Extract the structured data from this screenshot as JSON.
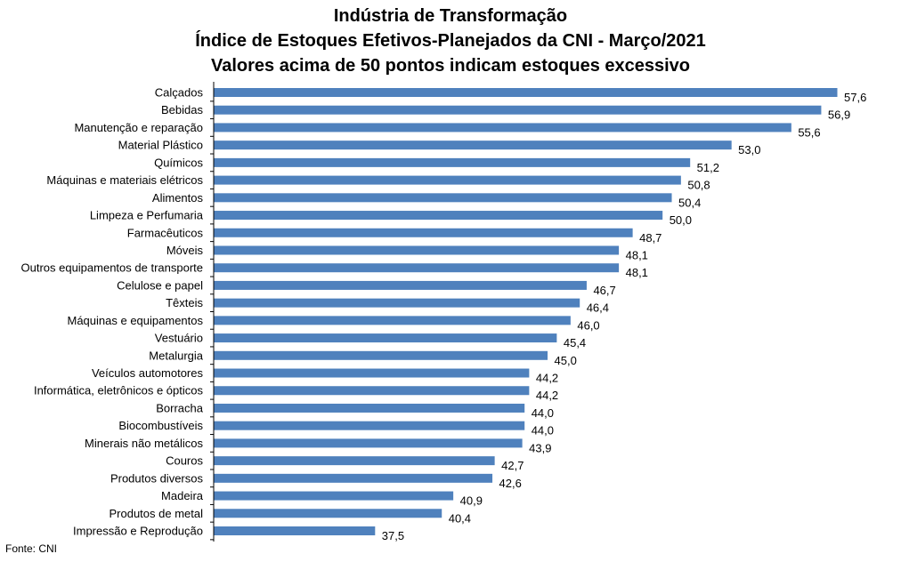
{
  "chart_data": {
    "type": "bar",
    "orientation": "horizontal",
    "title_lines": [
      "Indústria de Transformação",
      "Índice de Estoques Efetivos-Planejados da CNI - Março/2021",
      "Valores acima de 50 pontos indicam estoques excessivo"
    ],
    "categories": [
      "Calçados",
      "Bebidas",
      "Manutenção e reparação",
      "Material Plástico",
      "Químicos",
      "Máquinas e materiais elétricos",
      "Alimentos",
      "Limpeza e Perfumaria",
      "Farmacêuticos",
      "Móveis",
      "Outros equipamentos de transporte",
      "Celulose e papel",
      "Têxteis",
      "Máquinas e equipamentos",
      "Vestuário",
      "Metalurgia",
      "Veículos automotores",
      "Informática, eletrônicos e ópticos",
      "Borracha",
      "Biocombustíveis",
      "Minerais não metálicos",
      "Couros",
      "Produtos diversos",
      "Madeira",
      "Produtos de metal",
      "Impressão e Reprodução"
    ],
    "values": [
      57.6,
      56.9,
      55.6,
      53.0,
      51.2,
      50.8,
      50.4,
      50.0,
      48.7,
      48.1,
      48.1,
      46.7,
      46.4,
      46.0,
      45.4,
      45.0,
      44.2,
      44.2,
      44.0,
      44.0,
      43.9,
      42.7,
      42.6,
      40.9,
      40.4,
      37.5
    ],
    "value_labels": [
      "57,6",
      "56,9",
      "55,6",
      "53,0",
      "51,2",
      "50,8",
      "50,4",
      "50,0",
      "48,7",
      "48,1",
      "48,1",
      "46,7",
      "46,4",
      "46,0",
      "45,4",
      "45,0",
      "44,2",
      "44,2",
      "44,0",
      "44,0",
      "43,9",
      "42,7",
      "42,6",
      "40,9",
      "40,4",
      "37,5"
    ],
    "bar_color": "#4f81bd",
    "xlim": [
      30.5,
      58.6
    ],
    "grid": false,
    "legend": false
  },
  "source": "Fonte: CNI"
}
